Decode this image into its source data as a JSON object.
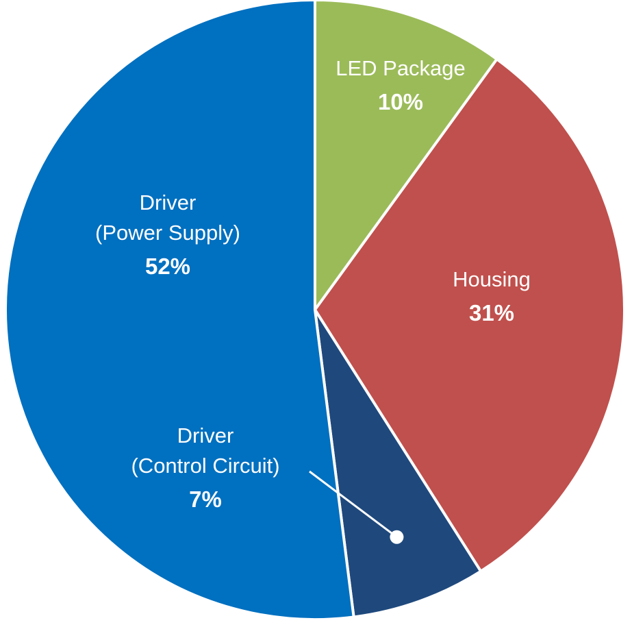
{
  "chart_data": {
    "type": "pie",
    "title": "",
    "start_angle_deg": 0,
    "direction": "clockwise",
    "slices": [
      {
        "name_lines": [
          "LED Package"
        ],
        "value": 10,
        "value_label": "10%",
        "color": "#9BBB59"
      },
      {
        "name_lines": [
          "Housing"
        ],
        "value": 31,
        "value_label": "31%",
        "color": "#C0504D"
      },
      {
        "name_lines": [
          "Driver",
          "(Control Circuit)"
        ],
        "value": 7,
        "value_label": "7%",
        "color": "#1F497D",
        "label_outside": true
      },
      {
        "name_lines": [
          "Driver",
          "(Power Supply)"
        ],
        "value": 52,
        "value_label": "52%",
        "color": "#0070C0"
      }
    ],
    "label_color": "#FFFFFF",
    "legend": "none"
  }
}
